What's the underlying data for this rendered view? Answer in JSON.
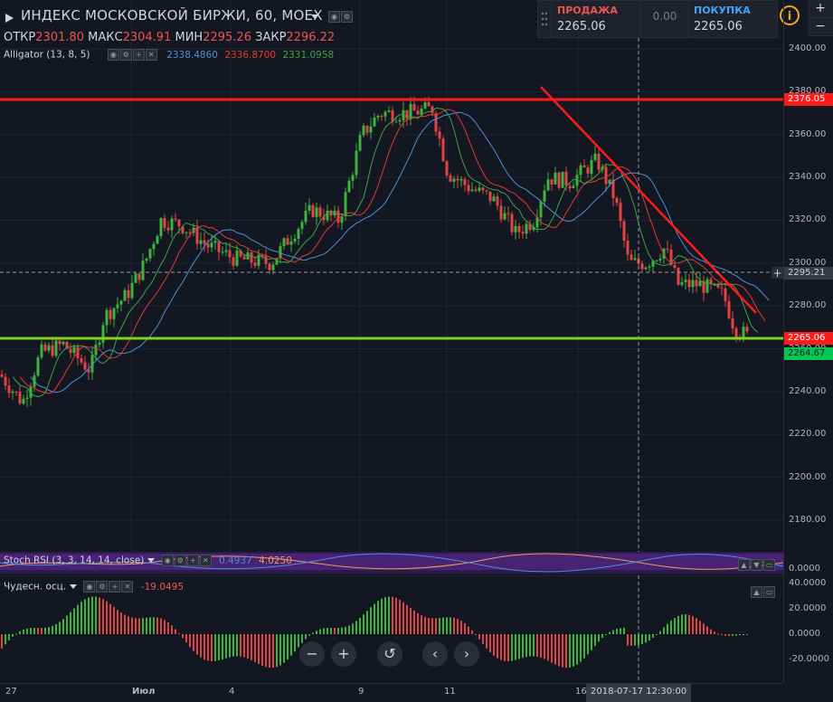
{
  "header": {
    "title": "ИНДЕКС МОСКОВСКОЙ БИРЖИ, 60, MOEX",
    "ohlc": [
      {
        "label": "ОТКР",
        "value": "2301.80"
      },
      {
        "label": "МАКС",
        "value": "2304.91"
      },
      {
        "label": "МИН",
        "value": "2295.26"
      },
      {
        "label": "ЗАКР",
        "value": "2296.22"
      }
    ]
  },
  "alligator": {
    "name": "Alligator (13, 8, 5)",
    "values": [
      "2338.4860",
      "2336.8700",
      "2331.0958"
    ],
    "colors": [
      "#4a90d9",
      "#e53935",
      "#43a047"
    ]
  },
  "trade": {
    "sell_label": "ПРОДАЖА",
    "sell_price": "2265.06",
    "spread": "0.00",
    "buy_label": "ПОКУПКА",
    "buy_price": "2265.06"
  },
  "stoch_rsi": {
    "name": "Stoch RSI (3, 3, 14, 14, close)",
    "k": "0.4937",
    "d": "4.0250"
  },
  "ao": {
    "name": "Чудесн. осц.",
    "value": "-19.0495"
  },
  "price_axis": {
    "ticks": [
      "2400.00",
      "2380.00",
      "2360.00",
      "2340.00",
      "2320.00",
      "2300.00",
      "2280.00",
      "2260.00",
      "2240.00",
      "2220.00",
      "2200.00",
      "2180.00"
    ],
    "tag_resist": "2376.05",
    "tag_cross": "2295.21",
    "tag_support": "2265.06",
    "tag_last": "2264.67",
    "rsi_tick": "0.0000",
    "ao_ticks": [
      "40.0000",
      "20.0000",
      "0.0000",
      "-20.0000"
    ]
  },
  "time_axis": {
    "ticks": [
      "27",
      "Июл",
      "4",
      "9",
      "11",
      "16"
    ],
    "crosshair_label": "2018-07-17 12:30:00"
  },
  "colors": {
    "up": "#26a69a",
    "bull": "#3fb23f",
    "bear": "#e04545",
    "resist": "#ff1a1a",
    "support": "#7cd321"
  },
  "nav": {
    "zoom_out": "−",
    "zoom_in": "+",
    "reset": "↺",
    "prev": "‹",
    "next": "›"
  }
}
